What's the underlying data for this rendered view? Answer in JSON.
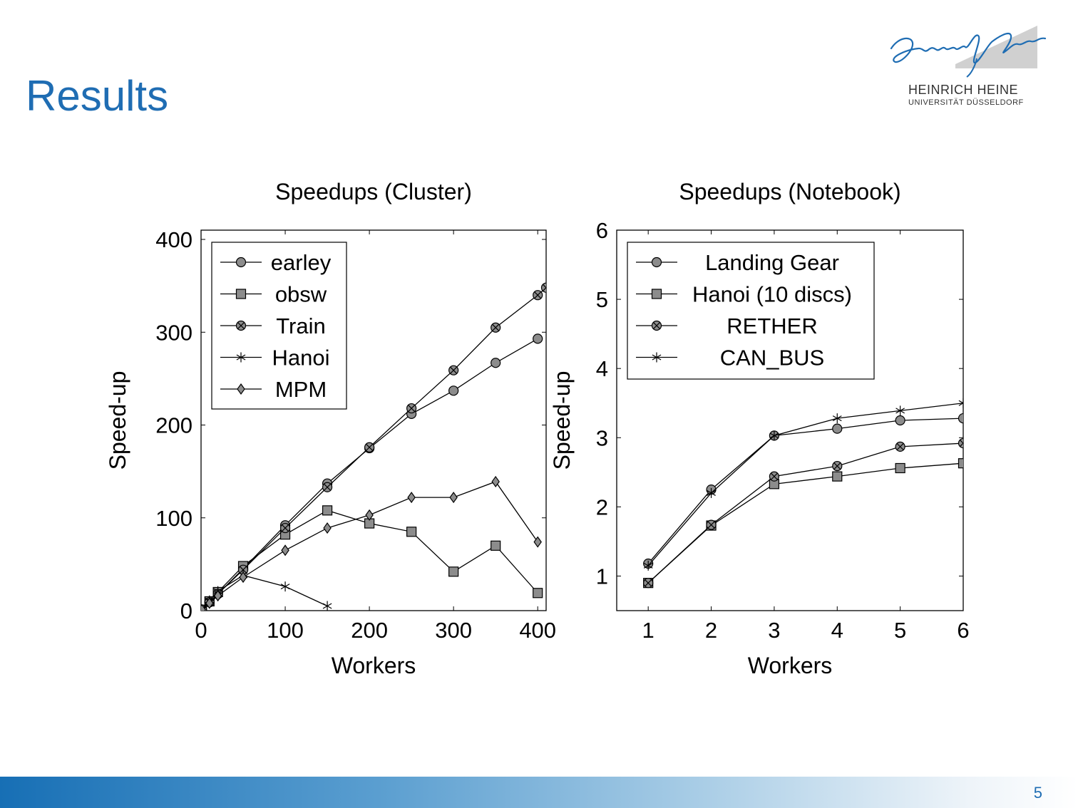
{
  "slide": {
    "title": "Results",
    "page_number": "5"
  },
  "logo": {
    "line1": "HEINRICH HEINE",
    "line2": "UNIVERSITÄT DÜSSELDORF",
    "signature_text": "Heinrich Heine",
    "bar_color": "#d0d0d0",
    "ink_color": "#1f6db3"
  },
  "colors": {
    "title": "#1f6db3",
    "footer_start": "#176fb5",
    "marker_fill": "#8c8c8c"
  },
  "chart_data": [
    {
      "type": "line",
      "title": "Speedups (Cluster)",
      "xlabel": "Workers",
      "ylabel": "Speed-up",
      "xlim": [
        0,
        410
      ],
      "ylim": [
        0,
        410
      ],
      "xticks": [
        0,
        100,
        200,
        300,
        400
      ],
      "yticks": [
        0,
        100,
        200,
        300,
        400
      ],
      "grid": false,
      "legend": "top-left",
      "series": [
        {
          "name": "earley",
          "marker": "circle",
          "x": [
            1,
            10,
            20,
            50,
            100,
            150,
            200,
            250,
            300,
            350,
            400
          ],
          "y": [
            1,
            9,
            18,
            45,
            92,
            137,
            175,
            212,
            237,
            267,
            293
          ]
        },
        {
          "name": "obsw",
          "marker": "square",
          "x": [
            1,
            10,
            20,
            50,
            100,
            150,
            200,
            250,
            300,
            350,
            400
          ],
          "y": [
            1,
            10,
            20,
            48,
            82,
            108,
            94,
            85,
            42,
            70,
            19
          ]
        },
        {
          "name": "Train",
          "marker": "otimes",
          "x": [
            1,
            10,
            20,
            50,
            100,
            150,
            200,
            250,
            300,
            350,
            400,
            410
          ],
          "y": [
            1,
            9,
            18,
            44,
            89,
            133,
            176,
            218,
            259,
            305,
            340,
            348
          ]
        },
        {
          "name": "Hanoi",
          "marker": "star",
          "x": [
            1,
            10,
            20,
            50,
            100,
            150
          ],
          "y": [
            1,
            11,
            21,
            38,
            26,
            5
          ]
        },
        {
          "name": "MPM",
          "marker": "diamond",
          "x": [
            1,
            10,
            20,
            50,
            100,
            150,
            200,
            250,
            300,
            350,
            400
          ],
          "y": [
            1,
            8,
            16,
            36,
            65,
            89,
            103,
            122,
            122,
            139,
            74
          ]
        }
      ]
    },
    {
      "type": "line",
      "title": "Speedups (Notebook)",
      "xlabel": "Workers",
      "ylabel": "Speed-up",
      "xlim": [
        0.5,
        6
      ],
      "ylim": [
        0.5,
        6
      ],
      "xticks": [
        1,
        2,
        3,
        4,
        5,
        6
      ],
      "yticks": [
        1,
        2,
        3,
        4,
        5,
        6
      ],
      "grid": false,
      "legend": "top-left",
      "series": [
        {
          "name": "Landing Gear",
          "marker": "circle",
          "x": [
            1,
            2,
            3,
            4,
            5,
            6
          ],
          "y": [
            1.18,
            2.25,
            3.03,
            3.13,
            3.25,
            3.28
          ]
        },
        {
          "name": "Hanoi (10 discs)",
          "marker": "square",
          "x": [
            1,
            2,
            3,
            4,
            5,
            6
          ],
          "y": [
            0.9,
            1.73,
            2.33,
            2.44,
            2.56,
            2.63
          ]
        },
        {
          "name": "RETHER",
          "marker": "otimes",
          "x": [
            1,
            2,
            3,
            4,
            5,
            6
          ],
          "y": [
            0.9,
            1.74,
            2.44,
            2.59,
            2.87,
            2.92
          ]
        },
        {
          "name": "CAN_BUS",
          "marker": "star",
          "x": [
            1,
            2,
            3,
            4,
            5,
            6
          ],
          "y": [
            1.15,
            2.2,
            3.03,
            3.28,
            3.39,
            3.5
          ]
        }
      ]
    }
  ]
}
